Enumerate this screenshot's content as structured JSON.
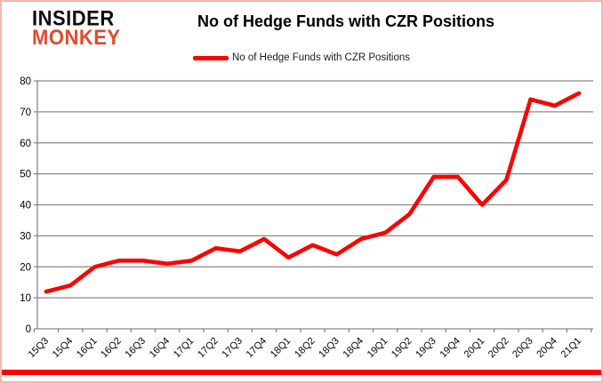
{
  "branding": {
    "logo_line1": "INSIDER",
    "logo_line2": "MONKEY"
  },
  "header": {
    "title": "No of Hedge Funds with CZR Positions"
  },
  "legend": {
    "label": "No of Hedge Funds with CZR Positions"
  },
  "colors": {
    "series_line": "#fe0000",
    "grid": "#898989",
    "axis": "#7f7f7f",
    "text": "#000000",
    "logo_black": "#0d0d0d",
    "logo_red": "#e2492f",
    "bottom_bar": "#fe0000",
    "frame_border": "#f3b7ae"
  },
  "chart_data": {
    "type": "line",
    "title": "No of Hedge Funds with CZR Positions",
    "xlabel": "",
    "ylabel": "",
    "ylim": [
      0,
      80
    ],
    "ytick_interval": 10,
    "ytick_labels": [
      "0",
      "10",
      "20",
      "30",
      "40",
      "50",
      "60",
      "70",
      "80"
    ],
    "grid": true,
    "legend_position": "top",
    "categories": [
      "15Q3",
      "15Q4",
      "16Q1",
      "16Q2",
      "16Q3",
      "16Q4",
      "17Q1",
      "17Q2",
      "17Q3",
      "17Q4",
      "18Q1",
      "18Q2",
      "18Q3",
      "18Q4",
      "19Q1",
      "19Q2",
      "19Q3",
      "19Q4",
      "20Q1",
      "20Q2",
      "20Q3",
      "20Q4",
      "21Q1"
    ],
    "series": [
      {
        "name": "No of Hedge Funds with CZR Positions",
        "color": "#fe0000",
        "values": [
          12,
          14,
          20,
          22,
          22,
          21,
          22,
          26,
          25,
          29,
          23,
          27,
          24,
          29,
          31,
          37,
          49,
          49,
          40,
          48,
          74,
          72,
          76
        ]
      }
    ]
  }
}
